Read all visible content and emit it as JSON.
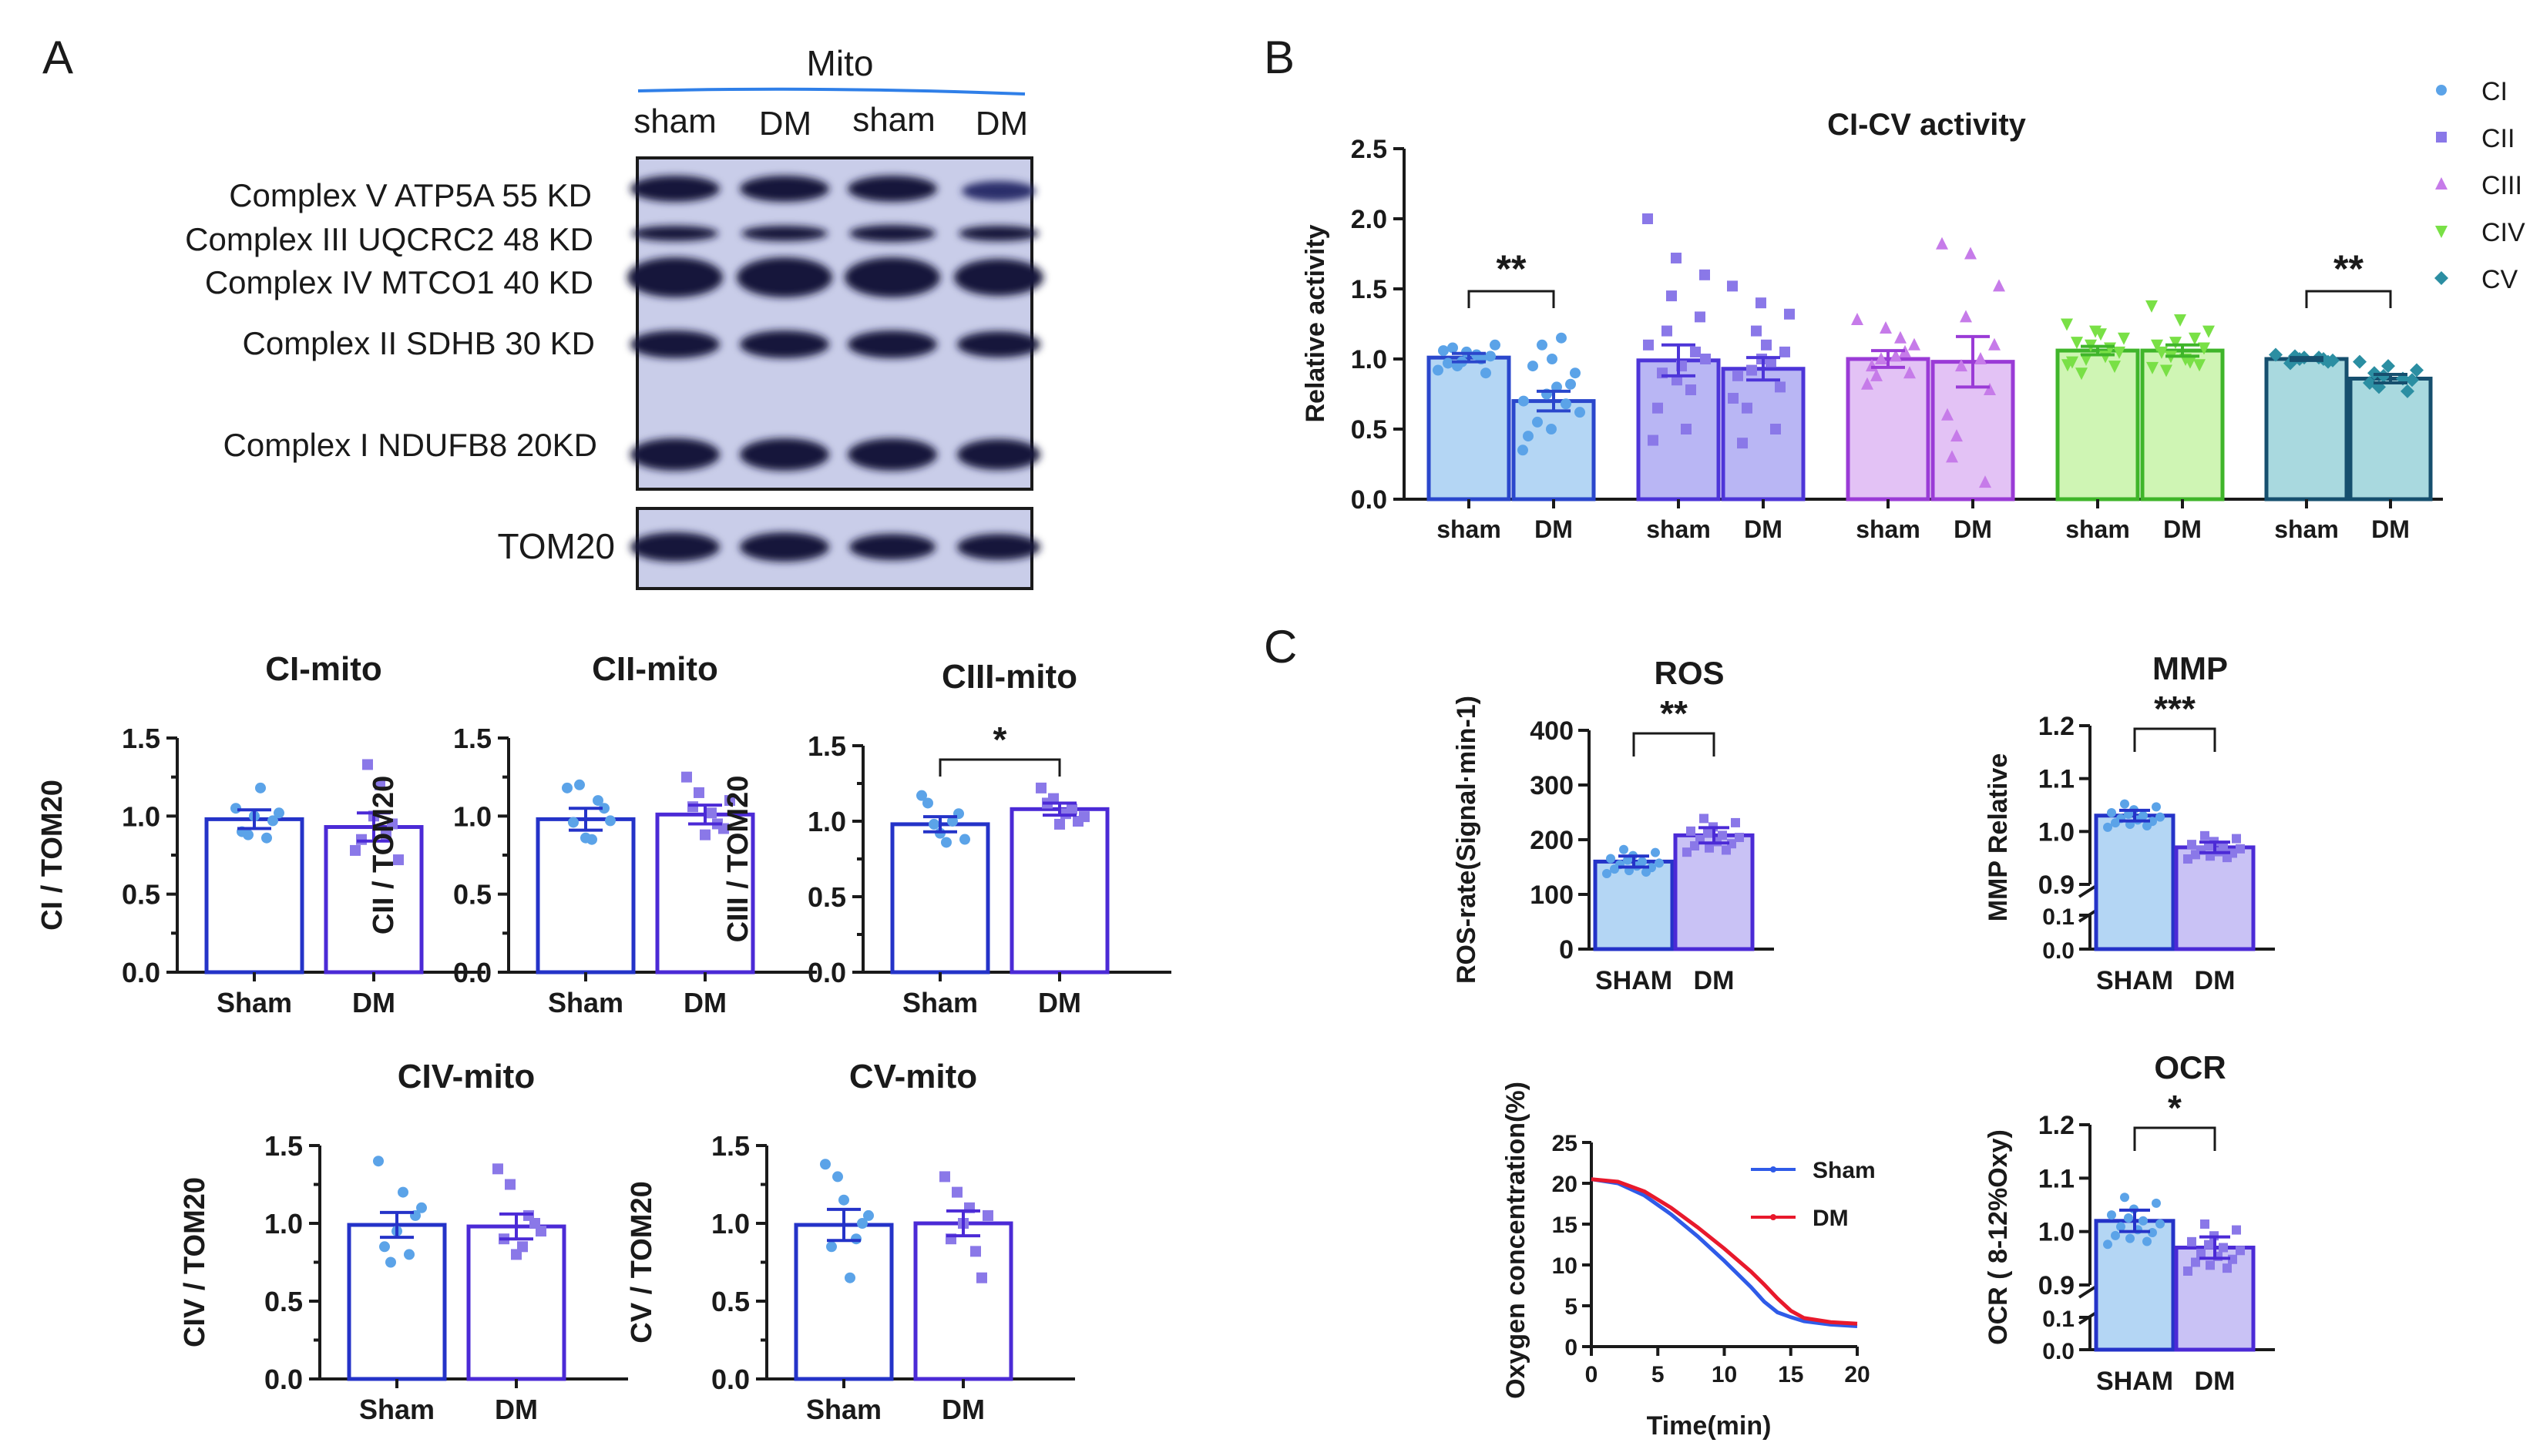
{
  "panel_labels": {
    "a": "A",
    "b": "B",
    "c": "C"
  },
  "colors": {
    "blue": "#2433c8",
    "blue_fill": "#bcd8f5",
    "purple": "#4b2ad6",
    "purple_fill": "#c9c2f5",
    "teal": "#1b7a8c",
    "red": "#e8192c",
    "dot_blue": "#5ba3e8",
    "dot_purple": "#8a78e8"
  },
  "blot": {
    "header": "Mito",
    "lanes": [
      "sham",
      "DM",
      "sham",
      "DM"
    ],
    "rows": [
      "Complex V ATP5A 55 KD",
      "Complex III UQCRC2 48 KD",
      "Complex IV MTCO1  40 KD",
      "Complex II SDHB 30 KD",
      "Complex I NDUFB8  20KD"
    ],
    "loading_label": "TOM20"
  },
  "chart_data": [
    {
      "id": "ci-mito",
      "type": "bar",
      "title": "CI-mito",
      "ylabel": "CI / TOM20",
      "categories": [
        "Sham",
        "DM"
      ],
      "values": [
        0.98,
        0.93
      ],
      "errors": [
        0.06,
        0.09
      ],
      "ylim": [
        0,
        1.5
      ],
      "yticks": [
        "0.0",
        "0.5",
        "1.0",
        "1.5"
      ],
      "significance": "",
      "points": [
        [
          1.05,
          0.88,
          1.18,
          0.97,
          0.9,
          1.0,
          0.86,
          1.02
        ],
        [
          0.78,
          1.33,
          1.2,
          0.95,
          0.85,
          1.0,
          0.88,
          0.72
        ]
      ]
    },
    {
      "id": "cii-mito",
      "type": "bar",
      "title": "CII-mito",
      "ylabel": "CII / TOM20",
      "categories": [
        "Sham",
        "DM"
      ],
      "values": [
        0.98,
        1.01
      ],
      "errors": [
        0.07,
        0.06
      ],
      "ylim": [
        0,
        1.5
      ],
      "yticks": [
        "0.0",
        "0.5",
        "1.0",
        "1.5"
      ],
      "significance": "",
      "points": [
        [
          1.18,
          1.2,
          0.85,
          1.05,
          0.96,
          0.86,
          1.1,
          0.97
        ],
        [
          1.25,
          1.15,
          1.02,
          0.92,
          1.06,
          0.88,
          0.95,
          1.1
        ]
      ]
    },
    {
      "id": "ciii-mito",
      "type": "bar",
      "title": "CIII-mito",
      "ylabel": "CIII / TOM20",
      "categories": [
        "Sham",
        "DM"
      ],
      "values": [
        0.98,
        1.08
      ],
      "errors": [
        0.05,
        0.04
      ],
      "ylim": [
        0,
        1.5
      ],
      "yticks": [
        "0.0",
        "0.5",
        "1.0",
        "1.5"
      ],
      "significance": "*",
      "points": [
        [
          1.17,
          0.98,
          0.86,
          1.05,
          1.12,
          0.92,
          1.0,
          0.88
        ],
        [
          1.22,
          1.15,
          1.05,
          1.0,
          1.12,
          0.98,
          1.08,
          1.03
        ]
      ]
    },
    {
      "id": "civ-mito",
      "type": "bar",
      "title": "CIV-mito",
      "ylabel": "CIV / TOM20",
      "categories": [
        "Sham",
        "DM"
      ],
      "values": [
        0.99,
        0.98
      ],
      "errors": [
        0.08,
        0.08
      ],
      "ylim": [
        0,
        1.5
      ],
      "yticks": [
        "0.0",
        "0.5",
        "1.0",
        "1.5"
      ],
      "significance": "",
      "points": [
        [
          1.4,
          0.75,
          1.2,
          1.05,
          0.85,
          0.95,
          0.8,
          1.1
        ],
        [
          1.35,
          1.25,
          0.85,
          1.0,
          0.9,
          0.8,
          1.05,
          0.95
        ]
      ]
    },
    {
      "id": "cv-mito",
      "type": "bar",
      "title": "CV-mito",
      "ylabel": "CV / TOM20",
      "categories": [
        "Sham",
        "DM"
      ],
      "values": [
        0.99,
        1.0
      ],
      "errors": [
        0.1,
        0.08
      ],
      "ylim": [
        0,
        1.5
      ],
      "yticks": [
        "0.0",
        "0.5",
        "1.0",
        "1.5"
      ],
      "significance": "",
      "points": [
        [
          1.38,
          1.3,
          0.65,
          1.0,
          0.85,
          1.15,
          0.9,
          1.05
        ],
        [
          1.3,
          1.2,
          1.1,
          0.65,
          0.9,
          1.0,
          0.82,
          1.05
        ]
      ]
    },
    {
      "id": "ci-cv",
      "type": "bar",
      "title": "CI-CV activity",
      "ylabel": "Relative activity",
      "categories": [
        "sham",
        "DM",
        "sham",
        "DM",
        "sham",
        "DM",
        "sham",
        "DM",
        "sham",
        "DM"
      ],
      "groups": [
        "CI",
        "CI",
        "CII",
        "CII",
        "CIII",
        "CIII",
        "CIV",
        "CIV",
        "CV",
        "CV"
      ],
      "values": [
        1.01,
        0.7,
        0.99,
        0.93,
        1.0,
        0.98,
        1.06,
        1.06,
        1.0,
        0.86
      ],
      "errors": [
        0.03,
        0.07,
        0.11,
        0.08,
        0.06,
        0.18,
        0.03,
        0.04,
        0.01,
        0.03
      ],
      "ylim": [
        0,
        2.5
      ],
      "yticks": [
        "0.0",
        "0.5",
        "1.0",
        "1.5",
        "2.0",
        "2.5"
      ],
      "significance": [
        "**",
        "**"
      ],
      "legend": [
        "CI",
        "CII",
        "CIII",
        "CIV",
        "CV"
      ]
    },
    {
      "id": "ros",
      "type": "bar",
      "title": "ROS",
      "ylabel": "ROS-rate(Signal·min-1)",
      "categories": [
        "SHAM",
        "DM"
      ],
      "values": [
        160,
        208
      ],
      "errors": [
        10,
        14
      ],
      "ylim": [
        0,
        400
      ],
      "yticks": [
        "0",
        "100",
        "200",
        "300",
        "400"
      ],
      "significance": "**"
    },
    {
      "id": "mmp",
      "type": "bar",
      "title": "MMP",
      "ylabel": "MMP Relative",
      "categories": [
        "SHAM",
        "DM"
      ],
      "values": [
        1.03,
        0.97
      ],
      "errors": [
        0.01,
        0.01
      ],
      "ylim": [
        0.9,
        1.2
      ],
      "yticks": [
        "0.9",
        "1.0",
        "1.1",
        "1.2"
      ],
      "ybreak_ticks": [
        "0.0",
        "0.1"
      ],
      "significance": "***"
    },
    {
      "id": "ocr",
      "type": "bar",
      "title": "OCR",
      "ylabel": "OCR ( 8-12%Oxy)",
      "categories": [
        "SHAM",
        "DM"
      ],
      "values": [
        1.02,
        0.97
      ],
      "errors": [
        0.02,
        0.02
      ],
      "ylim": [
        0.9,
        1.2
      ],
      "yticks": [
        "0.9",
        "1.0",
        "1.1",
        "1.2"
      ],
      "ybreak_ticks": [
        "0.0",
        "0.1"
      ],
      "significance": "*"
    },
    {
      "id": "oxygen",
      "type": "line",
      "title": "",
      "xlabel": "Time(min)",
      "ylabel": "Oxygen concentration(%)",
      "xlim": [
        0,
        20
      ],
      "ylim": [
        0,
        25
      ],
      "xticks": [
        "0",
        "5",
        "10",
        "15",
        "20"
      ],
      "yticks": [
        "0",
        "5",
        "10",
        "15",
        "20",
        "25"
      ],
      "series": [
        {
          "name": "Sham",
          "x": [
            0,
            2,
            4,
            6,
            8,
            10,
            12,
            13,
            14,
            15,
            16,
            18,
            20
          ],
          "y": [
            20.5,
            20,
            18.5,
            16.2,
            13.5,
            10.5,
            7.3,
            5.5,
            4.2,
            3.6,
            3.1,
            2.7,
            2.5
          ]
        },
        {
          "name": "DM",
          "x": [
            0,
            2,
            4,
            6,
            8,
            10,
            12,
            13,
            14,
            15,
            16,
            18,
            20
          ],
          "y": [
            20.5,
            20.2,
            19,
            17,
            14.6,
            12,
            9.2,
            7.6,
            5.9,
            4.4,
            3.5,
            3.0,
            2.8
          ]
        }
      ]
    }
  ]
}
